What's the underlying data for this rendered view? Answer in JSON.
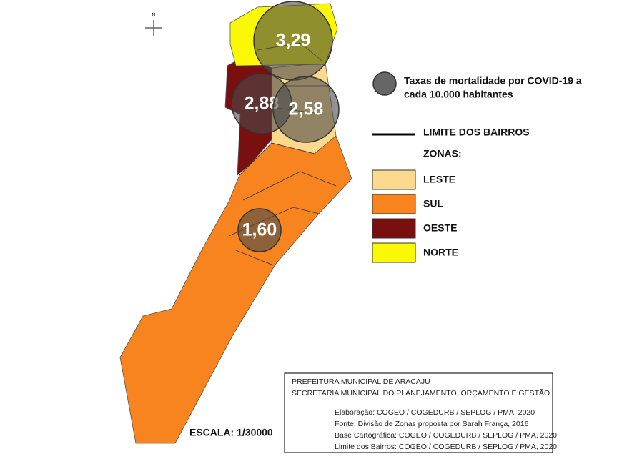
{
  "compass": "N",
  "markers": [
    {
      "label": "3,29"
    },
    {
      "label": "2,88"
    },
    {
      "label": "2,58"
    },
    {
      "label": "1,60"
    }
  ],
  "legend": {
    "rate_title": [
      "Taxas de mortalidade por COVID-19 a",
      "cada 10.000 habitantes"
    ],
    "boundary": "LIMITE DOS BAIRROS",
    "zones_title": "ZONAS:",
    "zones": [
      {
        "label": "LESTE",
        "color": "#fcd98c"
      },
      {
        "label": "SUL",
        "color": "#f7841f"
      },
      {
        "label": "OESTE",
        "color": "#7a0f10"
      },
      {
        "label": "NORTE",
        "color": "#fbf805"
      }
    ]
  },
  "scale": "ESCALA: 1/30000",
  "credits": {
    "header": [
      "PREFEITURA MUNICIPAL DE ARACAJU",
      "SECRETARIA MUNICIPAL DO PLANEJAMENTO, ORÇAMENTO E GESTÃO"
    ],
    "lines": [
      "Elaboração: COGEO / COGEDURB / SEPLOG / PMA, 2020",
      "Fonte: Divisão de Zonas proposta por Sarah França, 2016",
      "Base Cartográfica: COGEO / COGEDURB / SEPLOG / PMA, 2020",
      "Limite dos Bairros: COGEO / COGEDURB / SEPLOG / PMA, 2020"
    ]
  }
}
